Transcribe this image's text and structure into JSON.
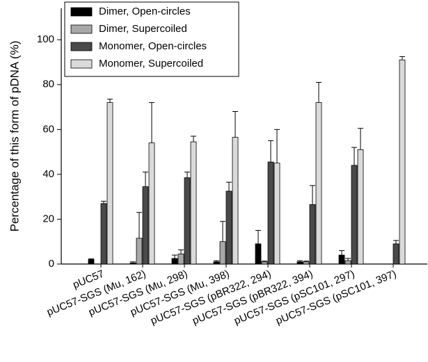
{
  "chart_data": {
    "type": "bar",
    "y_label": "Percentage of this form of pDNA (%)",
    "categories": [
      "pUC57",
      "pUC57-SGS (Mu, 162)",
      "pUC57-SGS (Mu, 298)",
      "pUC57-SGS (Mu, 398)",
      "pUC57-SGS (pBR322, 294)",
      "pUC57-SGS (pBR322, 394)",
      "pUC57-SGS (pSC101, 297)",
      "pUC57-SGS (pSC101, 397)"
    ],
    "series": [
      {
        "name": "Dimer, Open-circles",
        "color": "#000000",
        "values": [
          2,
          0.5,
          2.5,
          1,
          9,
          1,
          4,
          0
        ],
        "errors": [
          0.3,
          0.5,
          1.5,
          0.5,
          6,
          0.5,
          2,
          0
        ]
      },
      {
        "name": "Dimer, Supercoiled",
        "color": "#a8a8a8",
        "values": [
          0,
          11.5,
          4.5,
          10,
          1,
          1,
          1.5,
          0
        ],
        "errors": [
          0,
          11.5,
          1.8,
          9,
          0.3,
          0.3,
          1,
          0
        ]
      },
      {
        "name": "Monomer, Open-circles",
        "color": "#4a4a4a",
        "values": [
          27,
          34.5,
          38.5,
          32.5,
          45.5,
          26.5,
          44,
          9
        ],
        "errors": [
          1,
          6.5,
          2.5,
          4,
          9.5,
          8.5,
          8,
          1.5
        ]
      },
      {
        "name": "Monomer, Supercoiled",
        "color": "#dadada",
        "values": [
          72,
          54,
          54.5,
          56.5,
          45,
          72,
          51,
          91
        ],
        "errors": [
          1.5,
          18,
          2.5,
          11.5,
          15,
          9,
          9.5,
          1.5
        ]
      }
    ],
    "ylim": [
      0,
      114
    ],
    "yticks": [
      0,
      20,
      40,
      60,
      80,
      100
    ],
    "legend": "upper-left"
  }
}
